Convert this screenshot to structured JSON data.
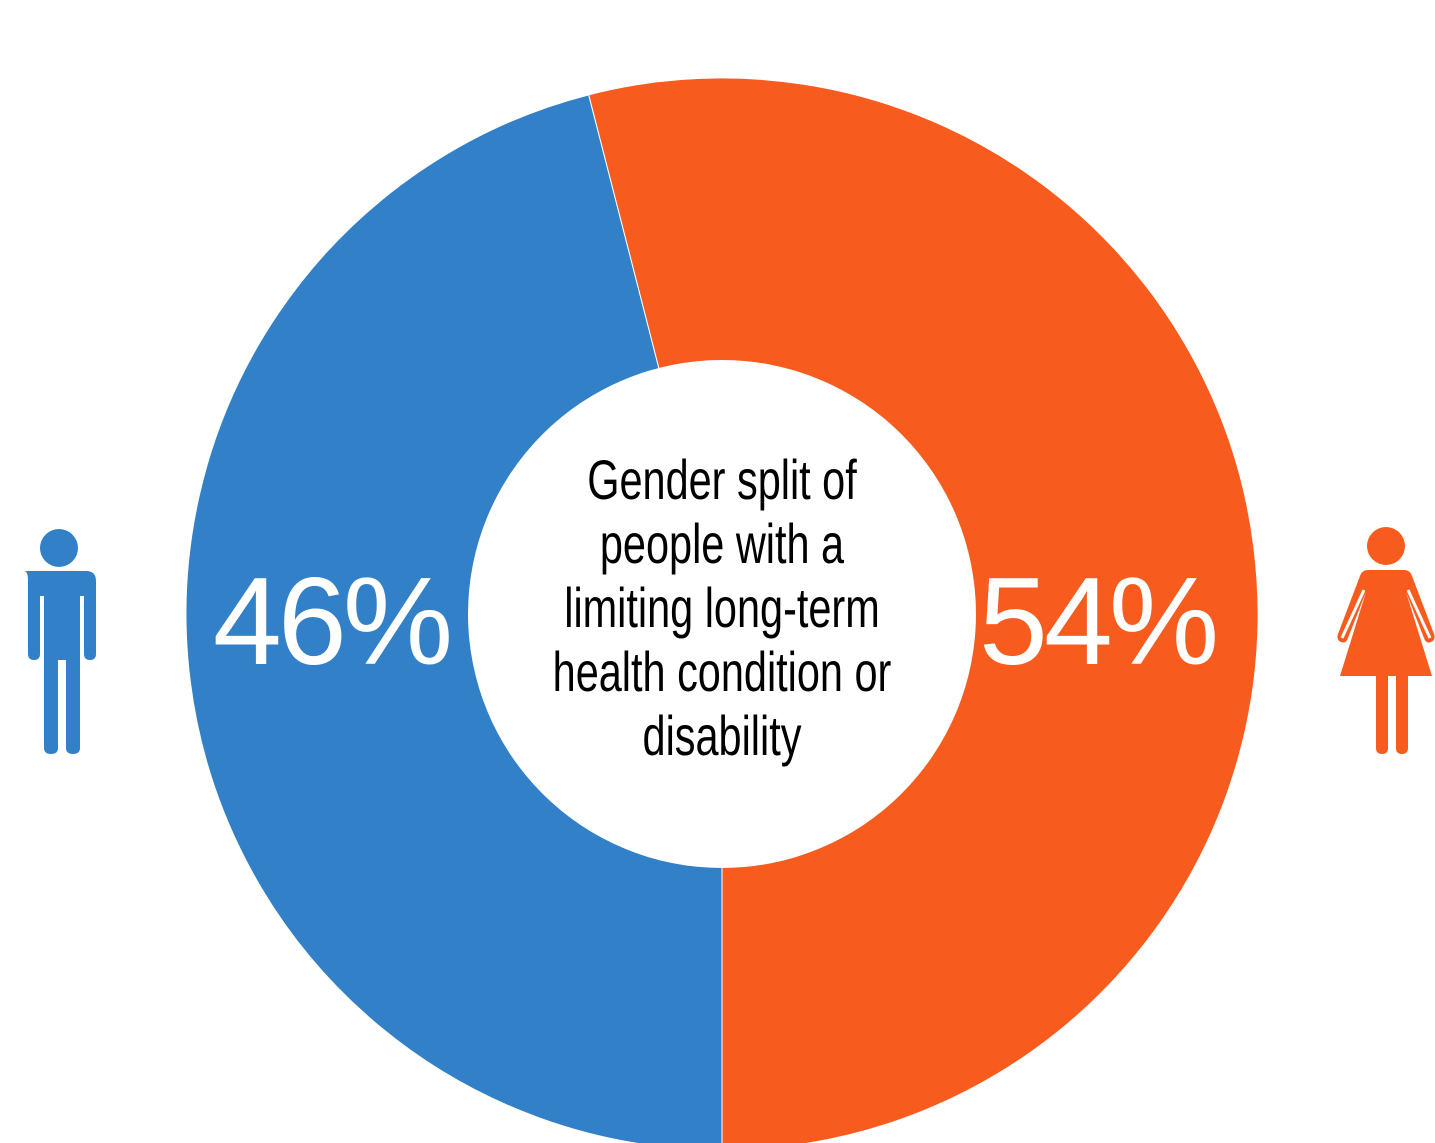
{
  "chart_data": {
    "type": "pie",
    "style": "donut",
    "title": "Gender split of people with a limiting long-term health condition or disability",
    "slices": [
      {
        "label": "46%",
        "value": 46,
        "color": "#3180c8",
        "icon": "male-person-icon"
      },
      {
        "label": "54%",
        "value": 54,
        "color": "#f85b1e",
        "icon": "female-person-icon"
      }
    ]
  }
}
